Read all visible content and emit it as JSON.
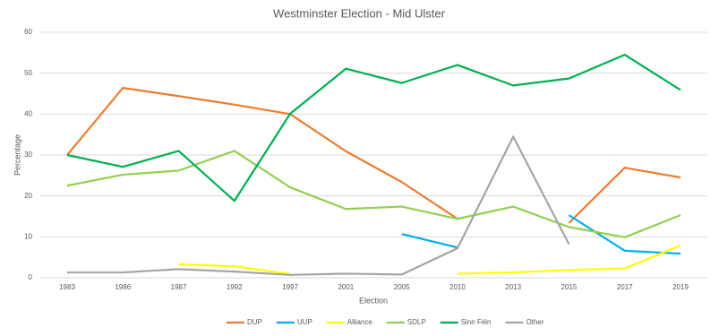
{
  "chart_data": {
    "type": "line",
    "title": "Westminster Election - Mid Ulster",
    "x_label": "Election",
    "y_label": "Percentage",
    "categories": [
      "1983",
      "1986",
      "1987",
      "1992",
      "1997",
      "2001",
      "2005",
      "2010",
      "2013",
      "2015",
      "2017",
      "2019"
    ],
    "series": [
      {
        "name": "DUP",
        "color": "#ed7d31",
        "values": [
          30,
          46.4,
          44.4,
          42.3,
          40,
          30.9,
          23.4,
          14.4,
          null,
          13.4,
          26.9,
          24.5
        ]
      },
      {
        "name": "UUP",
        "color": "#00b0f0",
        "values": [
          null,
          null,
          null,
          null,
          null,
          null,
          10.7,
          7.4,
          null,
          15.3,
          6.6,
          5.9
        ]
      },
      {
        "name": "Alliance",
        "color": "#ffff00",
        "values": [
          null,
          null,
          3.3,
          2.8,
          0.9,
          null,
          null,
          1.0,
          1.3,
          1.9,
          2.3,
          7.9
        ]
      },
      {
        "name": "SDLP",
        "color": "#92d050",
        "values": [
          22.5,
          25.2,
          26.2,
          31,
          22.1,
          16.8,
          17.4,
          14.4,
          17.4,
          12.4,
          9.9,
          15.3
        ]
      },
      {
        "name": "Sinn Féin",
        "color": "#00b050",
        "values": [
          30,
          27.1,
          31,
          18.8,
          40.1,
          51.1,
          47.6,
          52,
          47,
          48.7,
          54.5,
          45.9
        ]
      },
      {
        "name": "Other",
        "color": "#a5a5a5",
        "values": [
          1.3,
          1.3,
          2.1,
          1.5,
          0.7,
          1.0,
          0.8,
          7.2,
          34.5,
          8.2,
          null,
          null
        ]
      }
    ],
    "ylim": [
      0,
      60
    ],
    "yticks": [
      0,
      10,
      20,
      30,
      40,
      50,
      60
    ],
    "grid": true,
    "legend": "bottom"
  }
}
